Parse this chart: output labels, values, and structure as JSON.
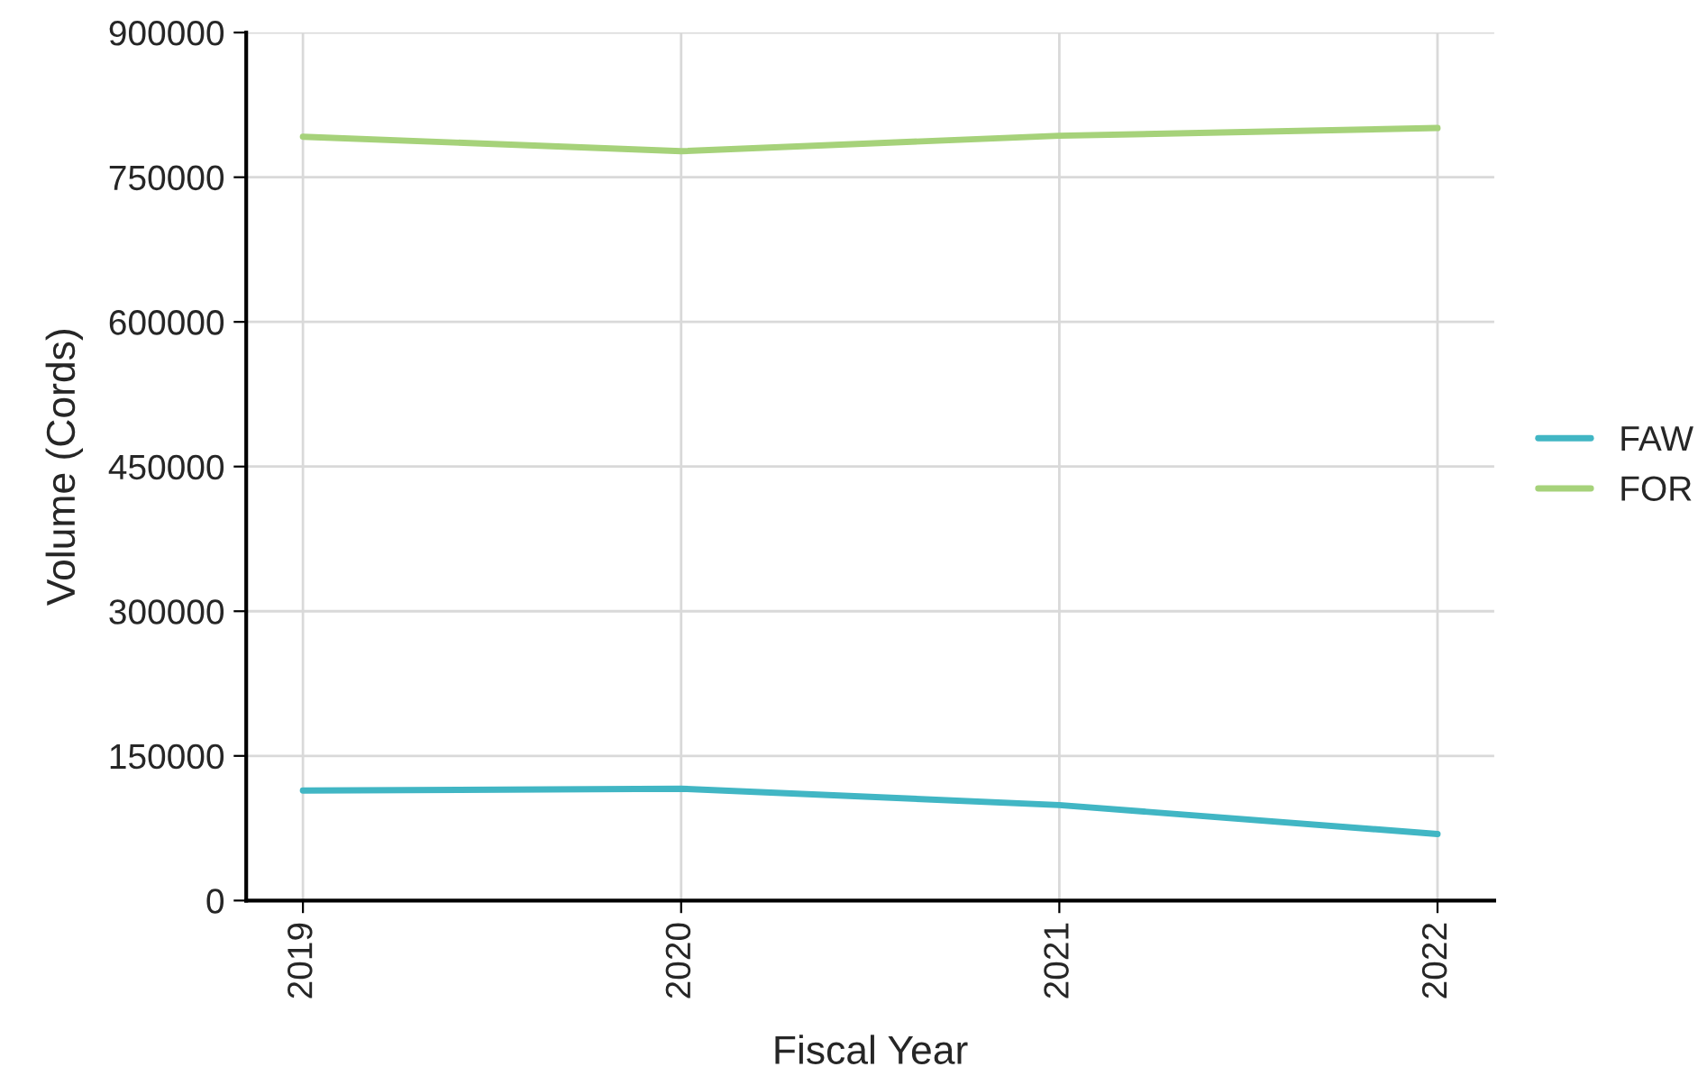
{
  "chart_data": {
    "type": "line",
    "xlabel": "Fiscal Year",
    "ylabel": "Volume (Cords)",
    "x": [
      2019,
      2020,
      2021,
      2022
    ],
    "series": [
      {
        "name": "FAW",
        "color": "#41b6c4",
        "values": [
          114000,
          116000,
          99000,
          69000
        ]
      },
      {
        "name": "FOR",
        "color": "#a6d27a",
        "values": [
          792000,
          777000,
          793000,
          801000
        ]
      }
    ],
    "xlim": [
      2018.85,
      2022.15
    ],
    "xticks": [
      2019,
      2020,
      2021,
      2022
    ],
    "ylim": [
      0,
      900000
    ],
    "yticks": [
      0,
      150000,
      300000,
      450000,
      600000,
      750000,
      900000
    ],
    "grid": true,
    "legend": "right",
    "line_style": "solid",
    "marker": "none"
  }
}
